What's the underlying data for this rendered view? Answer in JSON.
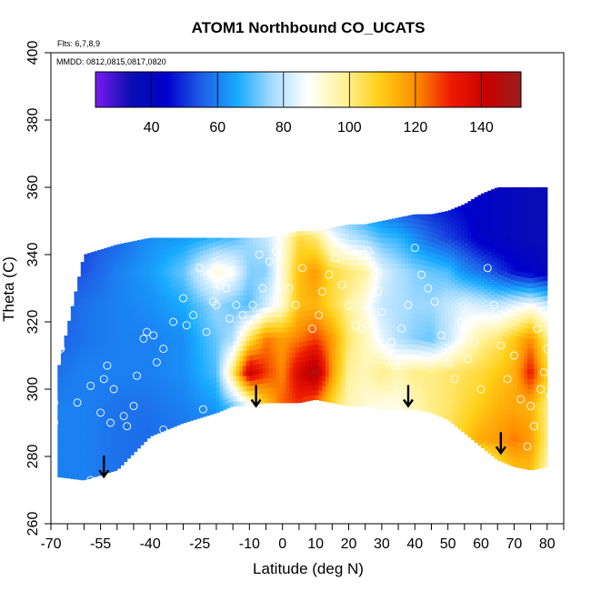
{
  "chart_data": {
    "type": "heatmap",
    "title": "ATOM1 Northbound CO_UCATS",
    "annotation_flights": "Flts: 6,7,8,9",
    "annotation_dates": "MMDD: 0812,0815,0817,0820",
    "xlabel": "Latitude (deg N)",
    "ylabel": "Theta (C)",
    "xlim": [
      -70,
      85
    ],
    "ylim": [
      260,
      400
    ],
    "x_ticks": [
      -70,
      -55,
      -40,
      -25,
      -10,
      0,
      10,
      20,
      30,
      40,
      50,
      60,
      70,
      80
    ],
    "x_minor_ticks": [
      -65,
      -60,
      -50,
      -45,
      -35,
      -30,
      -20,
      -15,
      -5,
      5,
      15,
      25,
      35,
      45,
      55,
      65,
      75,
      85
    ],
    "y_ticks": [
      260,
      280,
      300,
      320,
      340,
      360,
      380,
      400
    ],
    "colorbar": {
      "range": [
        23,
        152
      ],
      "ticks": [
        40,
        60,
        80,
        100,
        120,
        140
      ],
      "colors": [
        "#7a1aef",
        "#0a0fb0",
        "#0000cc",
        "#1f5fe6",
        "#17aaff",
        "#a8dcff",
        "#ffffff",
        "#fff29a",
        "#ffd018",
        "#ff9000",
        "#ee1c00",
        "#c80000",
        "#9a1e1e"
      ]
    },
    "data_grid": {
      "lat": [
        -68,
        -60,
        -50,
        -40,
        -30,
        -20,
        -15,
        -10,
        -5,
        0,
        5,
        10,
        15,
        20,
        25,
        30,
        35,
        40,
        45,
        50,
        55,
        60,
        65,
        70,
        75,
        80
      ],
      "theta_bottom": [
        274,
        273,
        276,
        286,
        290,
        293,
        295,
        295,
        296,
        296,
        296,
        297,
        296,
        295,
        295,
        294,
        294,
        294,
        293,
        291,
        287,
        283,
        279,
        277,
        276,
        277
      ],
      "theta_top": [
        305,
        340,
        343,
        345,
        345,
        345,
        345,
        345,
        345,
        346,
        347,
        347,
        348,
        349,
        349,
        350,
        351,
        352,
        352,
        353,
        355,
        358,
        360,
        360,
        360,
        360
      ],
      "theta_levels": [
        275,
        285,
        295,
        305,
        315,
        325,
        335,
        345,
        355
      ],
      "co": [
        [
          60,
          60,
          58,
          57,
          58,
          58,
          58,
          55,
          55,
          56,
          58,
          68,
          80,
          70,
          65,
          78,
          70,
          70,
          72,
          74,
          76,
          80,
          100,
          110,
          112,
          95
        ],
        [
          60,
          60,
          58,
          57,
          58,
          58,
          60,
          60,
          60,
          62,
          62,
          76,
          82,
          86,
          88,
          88,
          86,
          90,
          96,
          104,
          110,
          116,
          118,
          122,
          118,
          100
        ],
        [
          60,
          60,
          58,
          58,
          60,
          64,
          72,
          84,
          110,
          125,
          128,
          120,
          106,
          95,
          92,
          90,
          90,
          95,
          100,
          102,
          106,
          110,
          114,
          116,
          114,
          100
        ],
        [
          58,
          60,
          60,
          60,
          62,
          70,
          102,
          142,
          128,
          120,
          138,
          148,
          118,
          98,
          95,
          100,
          96,
          100,
          100,
          102,
          104,
          106,
          110,
          114,
          132,
          108
        ],
        [
          56,
          58,
          60,
          60,
          62,
          72,
          78,
          104,
          122,
          118,
          122,
          128,
          118,
          102,
          95,
          85,
          78,
          74,
          72,
          80,
          90,
          98,
          102,
          110,
          120,
          100
        ],
        [
          54,
          58,
          60,
          62,
          66,
          76,
          72,
          70,
          82,
          92,
          112,
          114,
          106,
          98,
          90,
          80,
          78,
          76,
          76,
          80,
          84,
          82,
          80,
          84,
          88,
          82
        ],
        [
          52,
          54,
          60,
          64,
          72,
          92,
          88,
          74,
          74,
          92,
          112,
          118,
          106,
          102,
          98,
          84,
          78,
          74,
          72,
          70,
          62,
          58,
          52,
          46,
          42,
          40
        ],
        [
          50,
          52,
          56,
          62,
          64,
          68,
          70,
          76,
          80,
          90,
          106,
          102,
          88,
          80,
          76,
          70,
          68,
          62,
          56,
          52,
          48,
          42,
          40,
          38,
          36,
          36
        ],
        [
          50,
          50,
          50,
          52,
          54,
          56,
          60,
          64,
          68,
          70,
          72,
          72,
          70,
          66,
          60,
          56,
          52,
          50,
          48,
          46,
          44,
          42,
          40,
          38,
          36,
          36
        ]
      ]
    },
    "sample_points": [
      [
        -70,
        275
      ],
      [
        -69,
        290
      ],
      [
        -69,
        296
      ],
      [
        -69,
        309
      ],
      [
        -68,
        311
      ],
      [
        -67,
        312
      ],
      [
        -66,
        321
      ],
      [
        -62,
        296
      ],
      [
        -58,
        273
      ],
      [
        -58,
        301
      ],
      [
        -55,
        293
      ],
      [
        -54,
        303
      ],
      [
        -53,
        307
      ],
      [
        -52,
        290
      ],
      [
        -51,
        300
      ],
      [
        -48,
        292
      ],
      [
        -47,
        289
      ],
      [
        -45,
        295
      ],
      [
        -44,
        304
      ],
      [
        -42,
        315
      ],
      [
        -41,
        317
      ],
      [
        -39,
        316
      ],
      [
        -38,
        308
      ],
      [
        -36,
        312
      ],
      [
        -36,
        288
      ],
      [
        -33,
        320
      ],
      [
        -30,
        327
      ],
      [
        -29,
        319
      ],
      [
        -27,
        322
      ],
      [
        -25,
        336
      ],
      [
        -24,
        294
      ],
      [
        -23,
        317
      ],
      [
        -21,
        326
      ],
      [
        -20,
        325
      ],
      [
        -19,
        331
      ],
      [
        -17,
        330
      ],
      [
        -16,
        321
      ],
      [
        -14,
        325
      ],
      [
        -12,
        322
      ],
      [
        -9,
        325
      ],
      [
        -7,
        340
      ],
      [
        -6,
        330
      ],
      [
        -4,
        338
      ],
      [
        -2,
        341
      ],
      [
        0,
        345
      ],
      [
        2,
        330
      ],
      [
        4,
        325
      ],
      [
        6,
        336
      ],
      [
        9,
        318
      ],
      [
        11,
        322
      ],
      [
        12,
        329
      ],
      [
        14,
        334
      ],
      [
        16,
        339
      ],
      [
        18,
        331
      ],
      [
        20,
        325
      ],
      [
        22,
        319
      ],
      [
        24,
        318
      ],
      [
        26,
        341
      ],
      [
        28,
        334
      ],
      [
        29,
        329
      ],
      [
        30,
        323
      ],
      [
        32,
        310
      ],
      [
        33,
        314
      ],
      [
        34,
        307
      ],
      [
        36,
        318
      ],
      [
        38,
        325
      ],
      [
        40,
        342
      ],
      [
        42,
        334
      ],
      [
        44,
        330
      ],
      [
        46,
        326
      ],
      [
        48,
        316
      ],
      [
        50,
        308
      ],
      [
        52,
        303
      ],
      [
        54,
        320
      ],
      [
        56,
        309
      ],
      [
        58,
        314
      ],
      [
        60,
        300
      ],
      [
        62,
        336
      ],
      [
        64,
        325
      ],
      [
        66,
        313
      ],
      [
        68,
        303
      ],
      [
        70,
        310
      ],
      [
        72,
        297
      ],
      [
        74,
        283
      ],
      [
        75,
        295
      ],
      [
        76,
        289
      ],
      [
        77,
        318
      ],
      [
        78,
        300
      ],
      [
        79,
        305
      ],
      [
        80,
        312
      ],
      [
        81,
        298
      ],
      [
        82,
        329
      ],
      [
        82,
        362
      ],
      [
        84,
        280
      ]
    ],
    "arrows": [
      {
        "lat": -54,
        "theta": 274
      },
      {
        "lat": -8,
        "theta": 295
      },
      {
        "lat": 38,
        "theta": 295
      },
      {
        "lat": 66,
        "theta": 281
      }
    ]
  }
}
